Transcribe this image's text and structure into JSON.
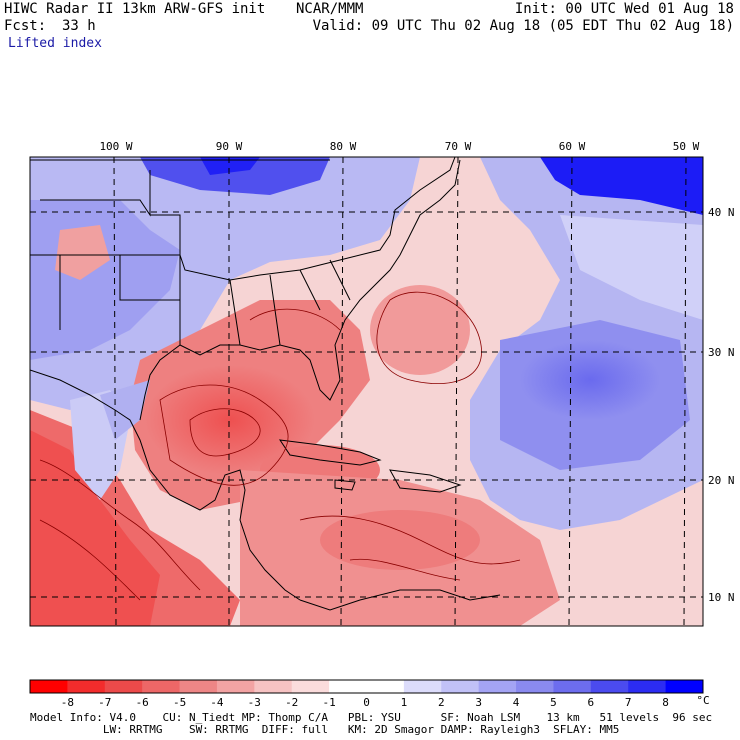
{
  "header": {
    "model_title": "HIWC Radar II 13km ARW-GFS init",
    "center": "NCAR/MMM",
    "init": "Init: 00 UTC Wed 01 Aug 18",
    "forecast_label": "Fcst:",
    "forecast_hours": "33 h",
    "valid": "Valid: 09 UTC Thu 02 Aug 18 (05 EDT Thu 02 Aug 18)",
    "field": "Lifted index"
  },
  "map": {
    "lon_labels": [
      "100 W",
      "90 W",
      "80 W",
      "70 W",
      "60 W",
      "50 W"
    ],
    "lat_labels": [
      "40 N",
      "30 N",
      "20 N",
      "10 N"
    ]
  },
  "colorbar": {
    "unit": "°C",
    "labels": [
      "-8",
      "-7",
      "-6",
      "-5",
      "-4",
      "-3",
      "-2",
      "-1",
      "0",
      "1",
      "2",
      "3",
      "4",
      "5",
      "6",
      "7",
      "8"
    ],
    "colors": [
      "#ff0000",
      "#f32c2c",
      "#ec4a4a",
      "#ed6767",
      "#ee8686",
      "#f3a3a3",
      "#f7c3c3",
      "#fbdcdc",
      "#ffffff",
      "#ffffff",
      "#dcdcfb",
      "#c1c1f7",
      "#a4a4f4",
      "#8a8aef",
      "#6d6dee",
      "#4b4bef",
      "#2c2cf3",
      "#0000ff"
    ]
  },
  "footer": {
    "line1": "Model Info: V4.0    CU: N_Tiedt MP: Thomp C/A   PBL: YSU      SF: Noah LSM    13 km   51 levels  96 sec",
    "line2": "           LW: RRTMG    SW: RRTMG  DIFF: full   KM: 2D Smagor DAMP: Rayleigh3  SFLAY: MM5"
  }
}
